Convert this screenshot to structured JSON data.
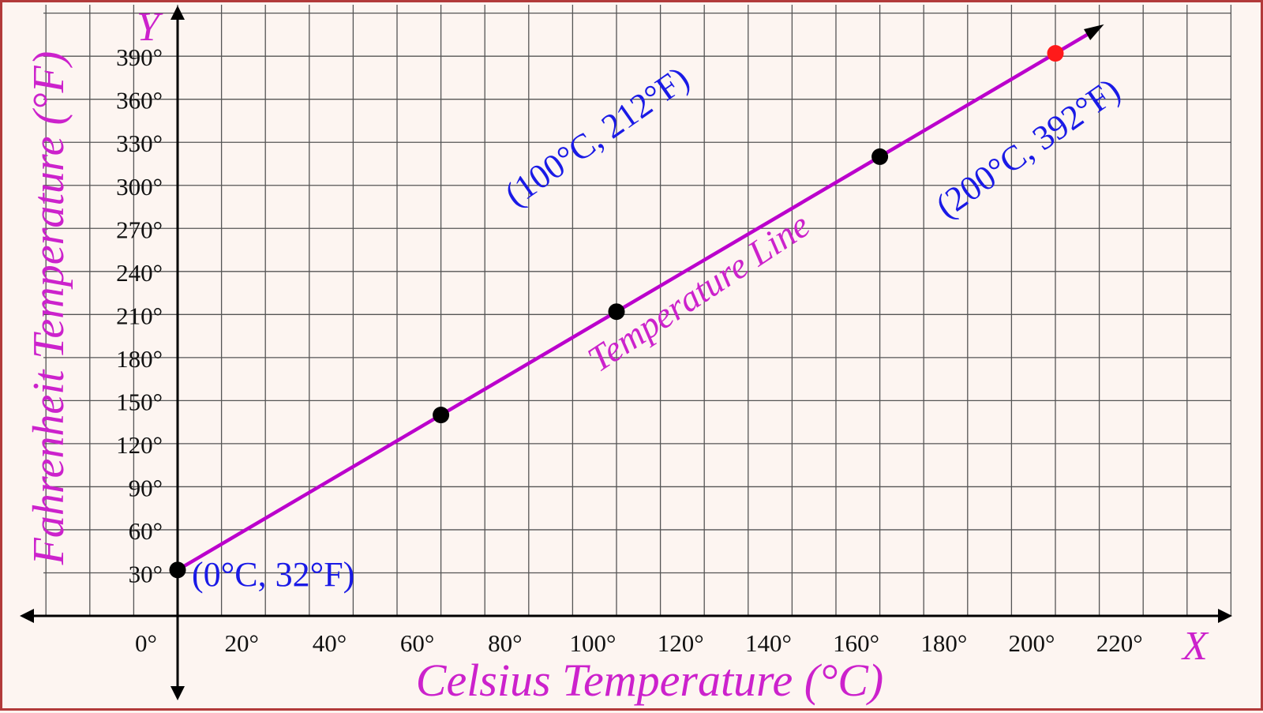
{
  "chart_data": {
    "type": "line",
    "xlabel": "Celsius Temperature (°C)",
    "ylabel": "Fahrenheit Temperature (°F)",
    "x_axis_letter": "X",
    "y_axis_letter": "Y",
    "xlim": [
      -35,
      240
    ],
    "ylim": [
      -60,
      410
    ],
    "x_ticks": [
      {
        "value": 0,
        "label": "0°"
      },
      {
        "value": 20,
        "label": "20°"
      },
      {
        "value": 40,
        "label": "40°"
      },
      {
        "value": 60,
        "label": "60°"
      },
      {
        "value": 80,
        "label": "80°"
      },
      {
        "value": 100,
        "label": "100°"
      },
      {
        "value": 120,
        "label": "120°"
      },
      {
        "value": 140,
        "label": "140°"
      },
      {
        "value": 160,
        "label": "160°"
      },
      {
        "value": 180,
        "label": "180°"
      },
      {
        "value": 200,
        "label": "200°"
      },
      {
        "value": 220,
        "label": "220°"
      }
    ],
    "y_ticks": [
      {
        "value": 30,
        "label": "30°"
      },
      {
        "value": 60,
        "label": "60°"
      },
      {
        "value": 90,
        "label": "90°"
      },
      {
        "value": 120,
        "label": "120°"
      },
      {
        "value": 150,
        "label": "150°"
      },
      {
        "value": 180,
        "label": "180°"
      },
      {
        "value": 210,
        "label": "210°"
      },
      {
        "value": 240,
        "label": "240°"
      },
      {
        "value": 270,
        "label": "270°"
      },
      {
        "value": 300,
        "label": "300°"
      },
      {
        "value": 330,
        "label": "330°"
      },
      {
        "value": 360,
        "label": "360°"
      },
      {
        "value": 390,
        "label": "390°"
      }
    ],
    "grid": true,
    "grid_step_x": 10,
    "grid_step_y": 30,
    "series": [
      {
        "name": "Temperature Line",
        "x": [
          0,
          210
        ],
        "y": [
          32,
          410
        ]
      }
    ],
    "points": [
      {
        "x": 0,
        "y": 32,
        "label": "(0°C, 32°F)",
        "color": "#000000"
      },
      {
        "x": 60,
        "y": 140,
        "label": "",
        "color": "#000000"
      },
      {
        "x": 100,
        "y": 212,
        "label": "(100°C, 212°F)",
        "color": "#000000"
      },
      {
        "x": 160,
        "y": 320,
        "label": "",
        "color": "#000000"
      },
      {
        "x": 200,
        "y": 392,
        "label": "(200°C, 392°F)",
        "color": "#ff1a1a"
      }
    ],
    "colors": {
      "line": "#bb00cc",
      "axis_title": "#cc22cc",
      "point_label": "#1a1ae6",
      "grid": "#555555",
      "frame": "#b23a3a",
      "background": "#fdf5f1"
    }
  }
}
